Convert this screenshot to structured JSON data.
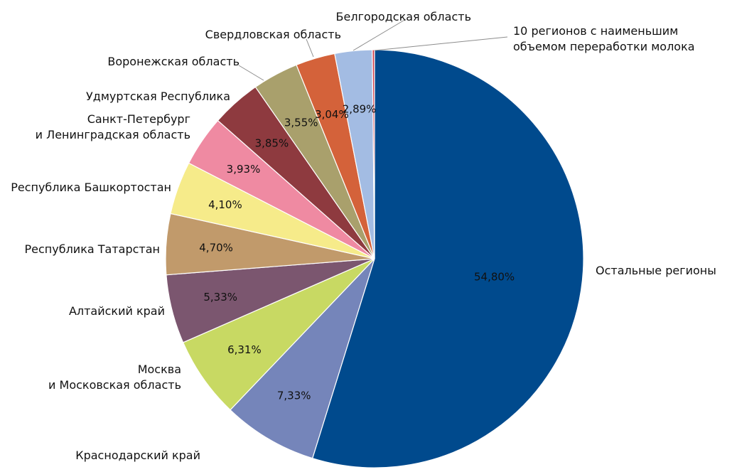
{
  "chart_data": {
    "type": "pie",
    "start_angle_deg": 0,
    "direction": "clockwise",
    "legend": "none",
    "series": [
      {
        "label": "Остальные регионы",
        "value": 54.8,
        "value_label": "54,80%",
        "color": "#004A8D"
      },
      {
        "label": "Краснодарский край",
        "value": 7.33,
        "value_label": "7,33%",
        "color": "#7585BA"
      },
      {
        "label": "Москва и Московская область",
        "label_lines": [
          "Москва",
          "и Московская область"
        ],
        "value": 6.31,
        "value_label": "6,31%",
        "color": "#C8D963"
      },
      {
        "label": "Алтайский край",
        "value": 5.33,
        "value_label": "5,33%",
        "color": "#7B566F"
      },
      {
        "label": "Республика Татарстан",
        "value": 4.7,
        "value_label": "4,70%",
        "color": "#C19A6B"
      },
      {
        "label": "Республика Башкортостан",
        "value": 4.1,
        "value_label": "4,10%",
        "color": "#F6EB8A"
      },
      {
        "label": "Санкт-Петербург и Ленинградская область",
        "label_lines": [
          "Санкт-Петербург",
          "и Ленинградская область"
        ],
        "value": 3.93,
        "value_label": "3,93%",
        "color": "#EF8AA2"
      },
      {
        "label": "Удмуртская Республика",
        "value": 3.85,
        "value_label": "3,85%",
        "color": "#8E3A3F"
      },
      {
        "label": "Воронежская область",
        "value": 3.55,
        "value_label": "3,55%",
        "color": "#A9A06C"
      },
      {
        "label": "Свердловская область",
        "value": 3.04,
        "value_label": "3,04%",
        "color": "#D4623A"
      },
      {
        "label": "Белгородская область",
        "value": 2.89,
        "value_label": "2,89%",
        "color": "#A3BCE3"
      },
      {
        "label": "10 регионов с наименьшим объемом переработки молока",
        "label_lines": [
          "10 регионов  с наименьшим",
          "объемом переработки молока"
        ],
        "value": 0.17,
        "value_label": "",
        "color": "#D0424D"
      }
    ]
  }
}
